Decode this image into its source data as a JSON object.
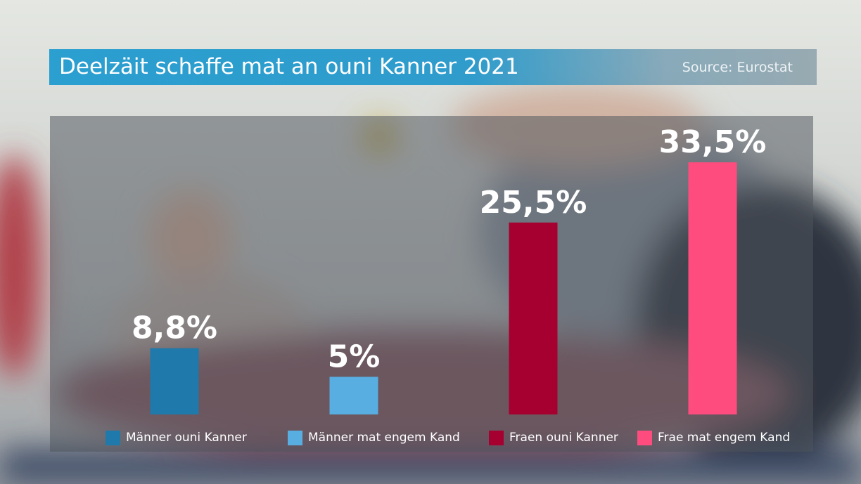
{
  "header": {
    "title": "Deelzäit schaffe mat an ouni Kanner 2021",
    "source": "Source: Eurostat"
  },
  "chart_data": {
    "type": "bar",
    "categories": [
      "Männer ouni Kanner",
      "Männer mat engem Kand",
      "Fraen ouni Kanner",
      "Frae mat engem Kand"
    ],
    "values": [
      8.8,
      5,
      25.5,
      33.5
    ],
    "value_labels": [
      "8,8%",
      "5%",
      "25,5%",
      "33,5%"
    ],
    "colors": [
      "#1f79ab",
      "#58aee0",
      "#a5002f",
      "#fe4c7e"
    ],
    "title": "Deelzäit schaffe mat an ouni Kanner 2021",
    "xlabel": "",
    "ylabel": "",
    "ylim": [
      0,
      35
    ],
    "grid": false,
    "legend": "bottom"
  }
}
